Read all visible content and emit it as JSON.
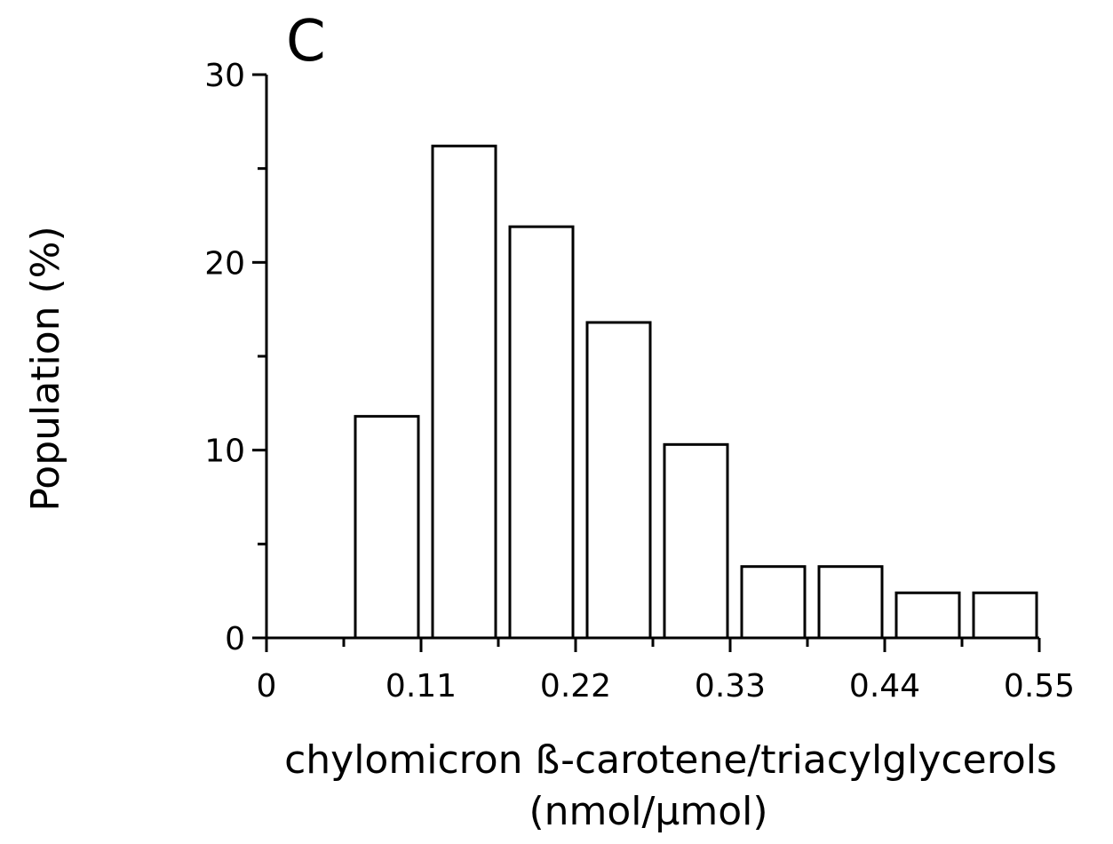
{
  "chart_data": {
    "type": "bar",
    "panel_label": "C",
    "xlabel_line1": "chylomicron ß-carotene/triacylglycerols",
    "xlabel_line2": "(nmol/μmol)",
    "ylabel": "Population (%)",
    "xlim": [
      0,
      0.55
    ],
    "ylim": [
      0,
      30
    ],
    "x_ticks": [
      {
        "value": 0,
        "label": "0"
      },
      {
        "value": 0.11,
        "label": "0.11"
      },
      {
        "value": 0.22,
        "label": "0.22"
      },
      {
        "value": 0.33,
        "label": "0.33"
      },
      {
        "value": 0.44,
        "label": "0.44"
      },
      {
        "value": 0.55,
        "label": "0.55"
      }
    ],
    "x_minor_ticks": [
      0.055,
      0.165,
      0.275,
      0.385,
      0.495
    ],
    "y_ticks": [
      {
        "value": 0,
        "label": "0"
      },
      {
        "value": 10,
        "label": "10"
      },
      {
        "value": 20,
        "label": "20"
      },
      {
        "value": 30,
        "label": "30"
      }
    ],
    "y_minor_ticks": [
      5,
      15,
      25
    ],
    "bars": [
      {
        "x0": 0.0,
        "x1": 0.055,
        "value": 0
      },
      {
        "x0": 0.055,
        "x1": 0.11,
        "value": 11.8
      },
      {
        "x0": 0.11,
        "x1": 0.165,
        "value": 26.2
      },
      {
        "x0": 0.165,
        "x1": 0.22,
        "value": 21.9
      },
      {
        "x0": 0.22,
        "x1": 0.275,
        "value": 16.8
      },
      {
        "x0": 0.275,
        "x1": 0.33,
        "value": 10.3
      },
      {
        "x0": 0.33,
        "x1": 0.385,
        "value": 3.8
      },
      {
        "x0": 0.385,
        "x1": 0.44,
        "value": 3.8
      },
      {
        "x0": 0.44,
        "x1": 0.495,
        "value": 2.4
      },
      {
        "x0": 0.495,
        "x1": 0.55,
        "value": 2.4
      }
    ],
    "grid": false,
    "legend": "none",
    "bar_fill": "#ffffff",
    "bar_stroke": "#000000"
  }
}
